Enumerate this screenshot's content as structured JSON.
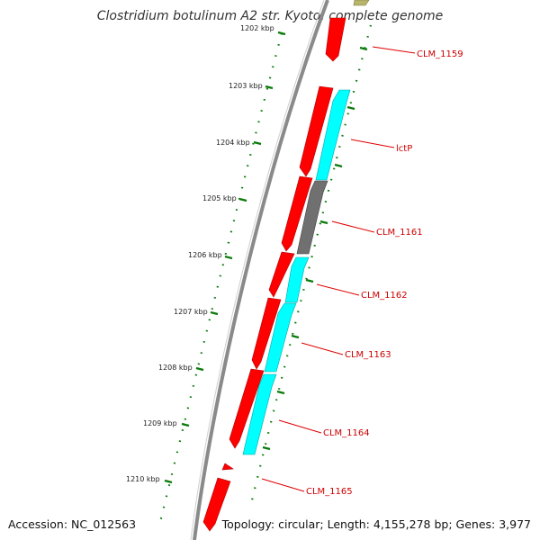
{
  "title": "Clostridium botulinum A2 str. Kyoto, complete genome",
  "footer": {
    "accession": "Accession: NC_012563",
    "topology": "Topology: circular; Length: 4,155,278 bp; Genes: 3,977"
  },
  "colors": {
    "background": "#ffffff",
    "backbone": "#8a8a8a",
    "forward_cds": "#ff0000",
    "reverse_cds": "#00ffff",
    "gray_cds": "#707070",
    "olive_cds": "#b8b46a",
    "tick": "#0a7a0a",
    "label": "#cc0000",
    "label_line": "#e00000"
  },
  "ruler": {
    "labels": [
      "1202 kbp",
      "1203 kbp",
      "1204 kbp",
      "1205 kbp",
      "1206 kbp",
      "1207 kbp",
      "1208 kbp",
      "1209 kbp",
      "1210 kbp"
    ]
  },
  "genes": [
    {
      "name": "CLM_1159"
    },
    {
      "name": "lctP"
    },
    {
      "name": "CLM_1161"
    },
    {
      "name": "CLM_1162"
    },
    {
      "name": "CLM_1163"
    },
    {
      "name": "CLM_1164"
    },
    {
      "name": "CLM_1165"
    }
  ]
}
